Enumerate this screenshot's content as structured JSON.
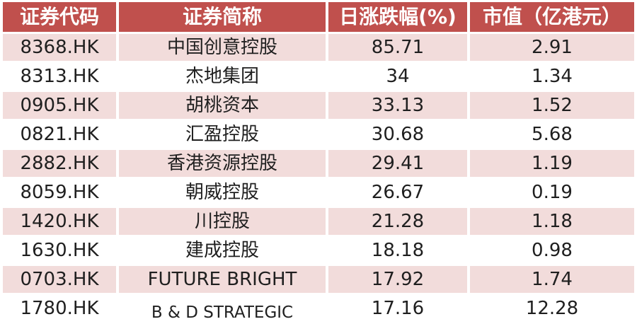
{
  "chart_data": {
    "type": "table",
    "title": "",
    "columns": [
      "证券代码",
      "证券简称",
      "日涨跌幅(%)",
      "市值（亿港元）"
    ],
    "rows": [
      [
        "8368.HK",
        "中国创意控股",
        "85.71",
        "2.91"
      ],
      [
        "8313.HK",
        "杰地集团",
        "34",
        "1.34"
      ],
      [
        "0905.HK",
        "胡桃资本",
        "33.13",
        "1.52"
      ],
      [
        "0821.HK",
        "汇盈控股",
        "30.68",
        "5.68"
      ],
      [
        "2882.HK",
        "香港资源控股",
        "29.41",
        "1.19"
      ],
      [
        "8059.HK",
        "朝威控股",
        "26.67",
        "0.19"
      ],
      [
        "1420.HK",
        "川控股",
        "21.28",
        "1.18"
      ],
      [
        "1630.HK",
        "建成控股",
        "18.18",
        "0.98"
      ],
      [
        "0703.HK",
        "FUTURE BRIGHT",
        "17.92",
        "1.74"
      ],
      [
        "1780.HK",
        "B & D STRATEGIC",
        "17.16",
        "12.28"
      ]
    ]
  },
  "colors": {
    "header_bg": "#c0504d",
    "header_text": "#ffffff",
    "row_alt_bg": "#f2dcdb",
    "row_bg": "#ffffff",
    "body_text": "#1f1f1f",
    "separator": "#ffffff"
  }
}
